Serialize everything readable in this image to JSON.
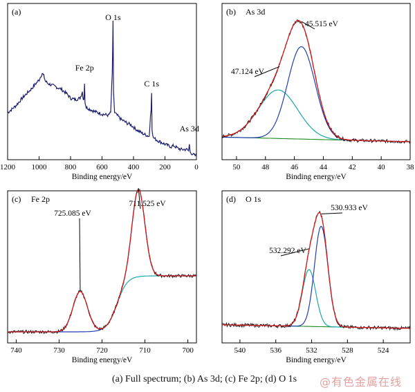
{
  "caption": "(a) Full spectrum; (b) As 3d; (c) Fe 2p; (d) O 1s",
  "watermark": "@有色金属在线",
  "colors": {
    "navy": "#1a1a6e",
    "measured": "#111111",
    "fit": "#d41a1a",
    "blue_peak": "#1f3fb0",
    "cyan_peak": "#1aa7a7",
    "background": "#1f8a1f",
    "axis": "#000000"
  },
  "chart_data": [
    {
      "panel": "a",
      "type": "line",
      "panel_label": "(a)",
      "xlabel": "Binding energy/eV",
      "ylabel": "",
      "xlim": [
        1200,
        0
      ],
      "x_reversed": true,
      "xticks": [
        1200,
        1000,
        800,
        600,
        400,
        200,
        0
      ],
      "y_ticks_shown": false,
      "annotations": [
        {
          "text": "O 1s",
          "x": 530
        },
        {
          "text": "Fe 2p",
          "x": 711
        },
        {
          "text": "C 1s",
          "x": 285
        },
        {
          "text": "As 3d",
          "x": 45
        }
      ],
      "series": [
        {
          "color": "#1a1a6e",
          "points": [
            [
              1200,
              0.3
            ],
            [
              1150,
              0.35
            ],
            [
              1100,
              0.42
            ],
            [
              1050,
              0.48
            ],
            [
              1000,
              0.55
            ],
            [
              980,
              0.6
            ],
            [
              970,
              0.58
            ],
            [
              960,
              0.54
            ],
            [
              940,
              0.52
            ],
            [
              900,
              0.5
            ],
            [
              860,
              0.48
            ],
            [
              820,
              0.44
            ],
            [
              800,
              0.41
            ],
            [
              770,
              0.4
            ],
            [
              740,
              0.41
            ],
            [
              725,
              0.46
            ],
            [
              722,
              0.42
            ],
            [
              715,
              0.4
            ],
            [
              711,
              0.52
            ],
            [
              708,
              0.38
            ],
            [
              700,
              0.34
            ],
            [
              650,
              0.31
            ],
            [
              600,
              0.29
            ],
            [
              560,
              0.28
            ],
            [
              545,
              0.3
            ],
            [
              535,
              0.6
            ],
            [
              530,
              1.0
            ],
            [
              527,
              0.46
            ],
            [
              520,
              0.3
            ],
            [
              480,
              0.25
            ],
            [
              440,
              0.22
            ],
            [
              420,
              0.21
            ],
            [
              400,
              0.19
            ],
            [
              380,
              0.17
            ],
            [
              340,
              0.14
            ],
            [
              300,
              0.12
            ],
            [
              292,
              0.28
            ],
            [
              288,
              0.32
            ],
            [
              285,
              0.45
            ],
            [
              282,
              0.18
            ],
            [
              275,
              0.11
            ],
            [
              250,
              0.09
            ],
            [
              200,
              0.06
            ],
            [
              160,
              0.04
            ],
            [
              145,
              0.05
            ],
            [
              120,
              0.03
            ],
            [
              100,
              0.02
            ],
            [
              60,
              0.02
            ],
            [
              50,
              0.01
            ],
            [
              45,
              0.06
            ],
            [
              40,
              0.0
            ],
            [
              20,
              -0.02
            ],
            [
              0,
              -0.03
            ]
          ]
        }
      ]
    },
    {
      "panel": "b",
      "type": "line",
      "panel_label": "(b)",
      "title": "As 3d",
      "xlabel": "Binding energy/eV",
      "ylabel": "",
      "xlim": [
        51,
        38
      ],
      "x_reversed": true,
      "xticks": [
        50,
        48,
        46,
        44,
        42,
        40,
        38
      ],
      "y_ticks_shown": false,
      "peaks": [
        {
          "label": "45.515 eV",
          "center": 45.515,
          "height": 0.8,
          "sigma": 0.95,
          "color": "#1f3fb0"
        },
        {
          "label": "47.124 eV",
          "center": 47.124,
          "height": 0.42,
          "sigma": 1.35,
          "color": "#1aa7a7"
        }
      ],
      "background": {
        "start": 51,
        "end": 38,
        "y_start": 0.04,
        "y_end": 0.0,
        "color": "#1f8a1f"
      },
      "series": [
        {
          "role": "measured",
          "color": "#111111"
        },
        {
          "role": "fit",
          "color": "#d41a1a"
        }
      ]
    },
    {
      "panel": "c",
      "type": "line",
      "panel_label": "(c)",
      "title": "Fe 2p",
      "xlabel": "Binding energy/eV",
      "ylabel": "",
      "xlim": [
        742,
        698
      ],
      "x_reversed": true,
      "xticks": [
        740,
        730,
        720,
        710,
        700
      ],
      "y_ticks_shown": false,
      "peaks": [
        {
          "label": "711.525 eV",
          "center": 711.525,
          "height": 0.78,
          "sigma": 1.5,
          "color": "#1f3fb0"
        },
        {
          "label": "725.085 eV",
          "center": 725.085,
          "height": 0.36,
          "sigma": 1.7,
          "color": "#1aa7a7"
        }
      ],
      "background": {
        "type": "shirley",
        "high": 0.5,
        "low": 0.0,
        "step_center": 716.5,
        "color": "#1aa7a7"
      },
      "series": [
        {
          "role": "measured",
          "color": "#111111"
        },
        {
          "role": "fit",
          "color": "#d41a1a"
        }
      ]
    },
    {
      "panel": "d",
      "type": "line",
      "panel_label": "(d)",
      "title": "O 1s",
      "xlabel": "Binding energy/eV",
      "ylabel": "",
      "xlim": [
        542,
        521
      ],
      "x_reversed": true,
      "xticks": [
        540,
        536,
        532,
        528,
        524
      ],
      "y_ticks_shown": false,
      "peaks": [
        {
          "label": "530.933 eV",
          "center": 530.933,
          "height": 0.83,
          "sigma": 0.75,
          "color": "#1f3fb0"
        },
        {
          "label": "532.292 eV",
          "center": 532.292,
          "height": 0.47,
          "sigma": 0.75,
          "color": "#1aa7a7"
        }
      ],
      "background": {
        "start": 542,
        "end": 521,
        "y_start": 0.03,
        "y_end": 0.0,
        "color": "#1f8a1f"
      },
      "series": [
        {
          "role": "measured",
          "color": "#111111"
        },
        {
          "role": "fit",
          "color": "#d41a1a"
        }
      ]
    }
  ]
}
